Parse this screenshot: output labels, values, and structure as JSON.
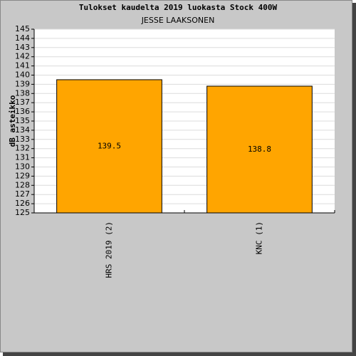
{
  "chart_data": {
    "type": "bar",
    "title": "Tulokset kaudelta 2019 luokasta Stock 400W",
    "subtitle": "JESSE LAAKSONEN",
    "y_label": "dB asteikko",
    "categories": [
      "HRS 2019 (2)",
      "KNC (1)"
    ],
    "values": [
      139.5,
      138.8
    ],
    "color": "#ffa500",
    "ylim": [
      125,
      145
    ],
    "yticks": [
      125,
      126,
      127,
      128,
      129,
      130,
      131,
      132,
      133,
      134,
      135,
      136,
      137,
      138,
      139,
      140,
      141,
      142,
      143,
      144,
      145
    ],
    "grid": true
  }
}
